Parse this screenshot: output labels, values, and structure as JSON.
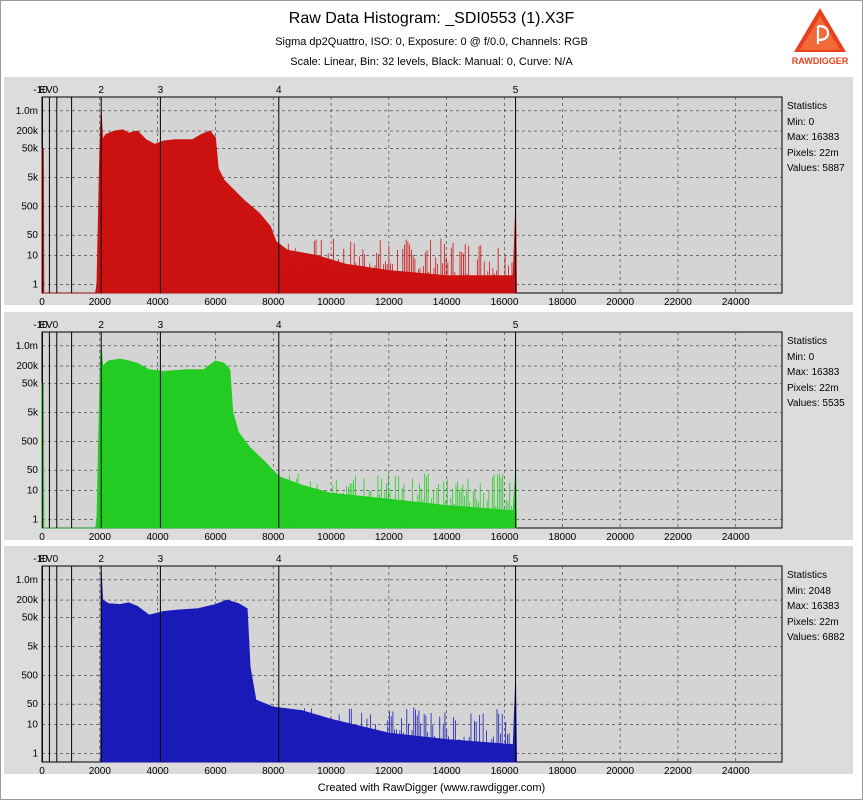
{
  "header": {
    "title": "Raw Data Histogram: _SDI0553 (1).X3F",
    "subtitle": "Sigma dp2Quattro, ISO: 0, Exposure: 0 @ f/0.0, Channels: RGB",
    "settings": "Scale: Linear, Bin: 32 levels, Black: Manual: 0, Curve: N/A"
  },
  "footer": "Created with RawDigger (www.rawdigger.com)",
  "logo": {
    "text": "RAWDIGGER",
    "icon": "rawdigger-logo-icon",
    "color": "#e8401c"
  },
  "chart_data": [
    {
      "type": "area",
      "channel": "R",
      "color": "#cc1111",
      "xlim": [
        0,
        25600
      ],
      "x_ticks": [
        0,
        2000,
        4000,
        6000,
        8000,
        10000,
        12000,
        14000,
        16000,
        18000,
        20000,
        22000,
        24000
      ],
      "y_scale": "log",
      "y_ticks": [
        "1.0m",
        "200k",
        "50k",
        "5k",
        "500",
        "50",
        "10",
        "1"
      ],
      "y_tick_values": [
        1000000,
        200000,
        50000,
        5000,
        500,
        50,
        10,
        1
      ],
      "ev_markers": [
        {
          "label": "-10",
          "x": 16
        },
        {
          "label": "EV0",
          "x": 512
        },
        {
          "label": "2",
          "x": 2048
        },
        {
          "label": "3",
          "x": 4096
        },
        {
          "label": "4",
          "x": 8192
        },
        {
          "label": "5",
          "x": 16383
        }
      ],
      "envelope": [
        [
          0,
          50000
        ],
        [
          48,
          50000
        ],
        [
          64,
          0
        ],
        [
          1850,
          0
        ],
        [
          1900,
          1
        ],
        [
          2000,
          50000
        ],
        [
          2048,
          1000000
        ],
        [
          2100,
          100000
        ],
        [
          2200,
          150000
        ],
        [
          2500,
          200000
        ],
        [
          2800,
          220000
        ],
        [
          3000,
          170000
        ],
        [
          3300,
          200000
        ],
        [
          3600,
          100000
        ],
        [
          3900,
          70000
        ],
        [
          4200,
          90000
        ],
        [
          4600,
          100000
        ],
        [
          5200,
          100000
        ],
        [
          5500,
          150000
        ],
        [
          5800,
          200000
        ],
        [
          6000,
          120000
        ],
        [
          6100,
          10000
        ],
        [
          6300,
          4000
        ],
        [
          6600,
          2000
        ],
        [
          7000,
          800
        ],
        [
          7500,
          300
        ],
        [
          7900,
          100
        ],
        [
          8100,
          30
        ],
        [
          8500,
          15
        ],
        [
          9500,
          10
        ],
        [
          10500,
          5
        ],
        [
          12000,
          3
        ],
        [
          14000,
          2
        ],
        [
          16300,
          2
        ],
        [
          16383,
          500
        ],
        [
          16420,
          0
        ]
      ],
      "statistics": {
        "title": "Statistics",
        "min": "Min: 0",
        "max": "Max: 16383",
        "pixels": "Pixels: 22m",
        "values": "Values: 5887"
      }
    },
    {
      "type": "area",
      "channel": "G",
      "color": "#22cc22",
      "xlim": [
        0,
        25600
      ],
      "x_ticks": [
        0,
        2000,
        4000,
        6000,
        8000,
        10000,
        12000,
        14000,
        16000,
        18000,
        20000,
        22000,
        24000
      ],
      "y_scale": "log",
      "y_ticks": [
        "1.0m",
        "200k",
        "50k",
        "5k",
        "500",
        "50",
        "10",
        "1"
      ],
      "y_tick_values": [
        1000000,
        200000,
        50000,
        5000,
        500,
        50,
        10,
        1
      ],
      "ev_markers": [
        {
          "label": "-10",
          "x": 16
        },
        {
          "label": "EV0",
          "x": 512
        },
        {
          "label": "2",
          "x": 2048
        },
        {
          "label": "3",
          "x": 4096
        },
        {
          "label": "4",
          "x": 8192
        },
        {
          "label": "5",
          "x": 16383
        }
      ],
      "envelope": [
        [
          0,
          50000
        ],
        [
          48,
          50000
        ],
        [
          64,
          0
        ],
        [
          1850,
          0
        ],
        [
          1900,
          1
        ],
        [
          2000,
          50000
        ],
        [
          2048,
          1000000
        ],
        [
          2100,
          200000
        ],
        [
          2300,
          300000
        ],
        [
          2700,
          350000
        ],
        [
          3000,
          300000
        ],
        [
          3300,
          250000
        ],
        [
          3700,
          150000
        ],
        [
          4200,
          130000
        ],
        [
          5000,
          150000
        ],
        [
          5600,
          150000
        ],
        [
          6000,
          300000
        ],
        [
          6300,
          250000
        ],
        [
          6500,
          150000
        ],
        [
          6600,
          5000
        ],
        [
          6800,
          1000
        ],
        [
          7200,
          300
        ],
        [
          7700,
          100
        ],
        [
          8200,
          30
        ],
        [
          9000,
          15
        ],
        [
          10000,
          8
        ],
        [
          12000,
          5
        ],
        [
          14000,
          3
        ],
        [
          16300,
          2
        ],
        [
          16383,
          50
        ],
        [
          16420,
          0
        ]
      ],
      "statistics": {
        "title": "Statistics",
        "min": "Min: 0",
        "max": "Max: 16383",
        "pixels": "Pixels: 22m",
        "values": "Values: 5535"
      }
    },
    {
      "type": "area",
      "channel": "B",
      "color": "#1a1ab8",
      "xlim": [
        0,
        25600
      ],
      "x_ticks": [
        0,
        2000,
        4000,
        6000,
        8000,
        10000,
        12000,
        14000,
        16000,
        18000,
        20000,
        22000,
        24000
      ],
      "y_scale": "log",
      "y_ticks": [
        "1.0m",
        "200k",
        "50k",
        "5k",
        "500",
        "50",
        "10",
        "1"
      ],
      "y_tick_values": [
        1000000,
        200000,
        50000,
        5000,
        500,
        50,
        10,
        1
      ],
      "ev_markers": [
        {
          "label": "-10",
          "x": 16
        },
        {
          "label": "EV0",
          "x": 512
        },
        {
          "label": "2",
          "x": 2048
        },
        {
          "label": "3",
          "x": 4096
        },
        {
          "label": "4",
          "x": 8192
        },
        {
          "label": "5",
          "x": 16383
        }
      ],
      "envelope": [
        [
          2030,
          0
        ],
        [
          2048,
          2000000
        ],
        [
          2100,
          200000
        ],
        [
          2300,
          150000
        ],
        [
          2700,
          140000
        ],
        [
          3000,
          160000
        ],
        [
          3300,
          120000
        ],
        [
          3700,
          60000
        ],
        [
          4200,
          80000
        ],
        [
          4700,
          90000
        ],
        [
          5400,
          100000
        ],
        [
          6000,
          140000
        ],
        [
          6400,
          200000
        ],
        [
          6800,
          150000
        ],
        [
          7100,
          100000
        ],
        [
          7200,
          1000
        ],
        [
          7400,
          70
        ],
        [
          8000,
          40
        ],
        [
          9000,
          30
        ],
        [
          10000,
          15
        ],
        [
          12000,
          5
        ],
        [
          14000,
          3
        ],
        [
          16300,
          2
        ],
        [
          16383,
          300
        ],
        [
          16420,
          0
        ]
      ],
      "statistics": {
        "title": "Statistics",
        "min": "Min: 2048",
        "max": "Max: 16383",
        "pixels": "Pixels: 22m",
        "values": "Values: 6882"
      }
    }
  ]
}
